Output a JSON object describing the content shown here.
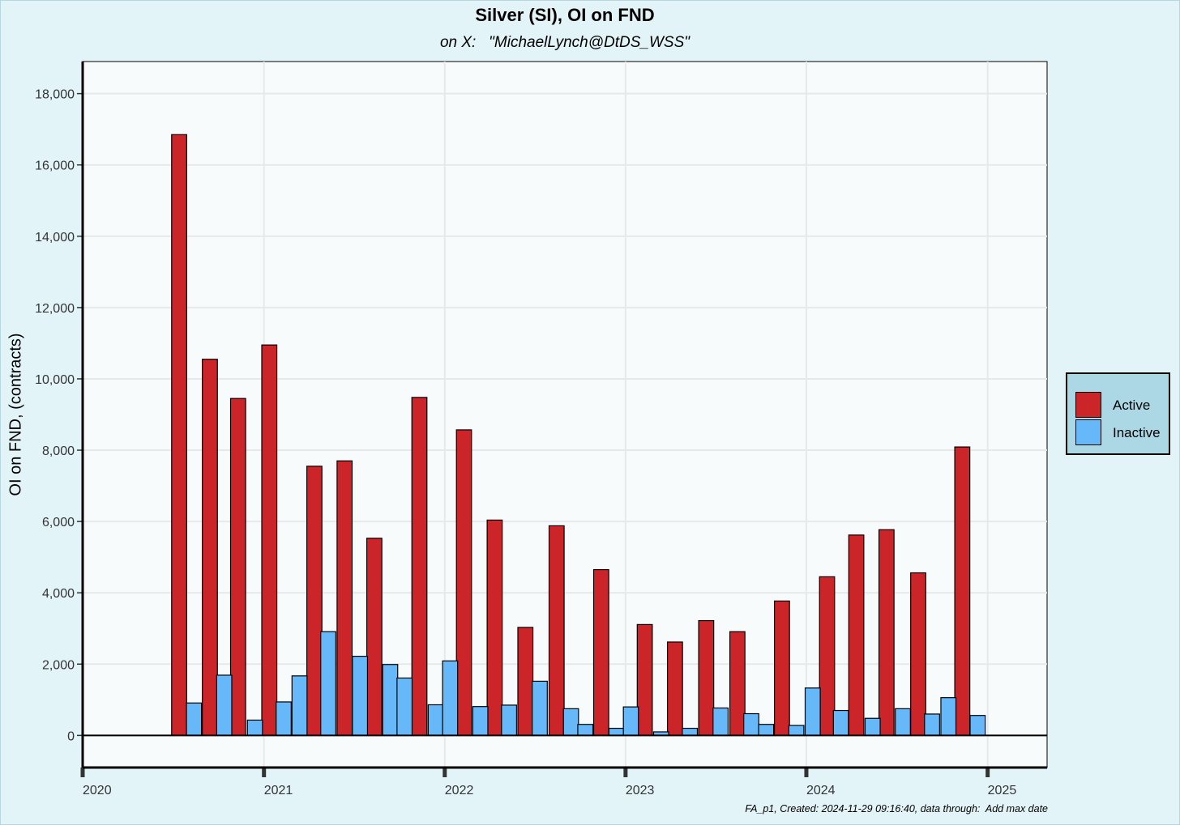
{
  "chart_data": {
    "type": "bar",
    "title": "Silver (SI), OI on FND",
    "subtitle": "on X:   \"MichaelLynch@DtDS_WSS\"",
    "ylabel": "OI on FND, (contracts)",
    "xlabel": "",
    "x_ticks": [
      "2020",
      "2021",
      "2022",
      "2023",
      "2024",
      "2025"
    ],
    "y_ticks": [
      "0",
      "2,000",
      "4,000",
      "6,000",
      "8,000",
      "10,000",
      "12,000",
      "14,000",
      "16,000",
      "18,000"
    ],
    "ylim": [
      -900,
      18900
    ],
    "xlim": [
      "2020-01-01",
      "2025-05-01"
    ],
    "grid": true,
    "legend_position": "right",
    "caption": "FA_p1, Created: 2024-11-29 09:16:40, data through:  Add max date",
    "series": [
      {
        "name": "Active",
        "color": "#cc2529",
        "points": [
          {
            "date": "2020-07-29",
            "value": 16850
          },
          {
            "date": "2020-09-29",
            "value": 10550
          },
          {
            "date": "2020-11-25",
            "value": 9450
          },
          {
            "date": "2021-01-27",
            "value": 10950
          },
          {
            "date": "2021-04-28",
            "value": 7550
          },
          {
            "date": "2021-06-28",
            "value": 7700
          },
          {
            "date": "2021-08-27",
            "value": 5530
          },
          {
            "date": "2021-11-26",
            "value": 9480
          },
          {
            "date": "2022-02-24",
            "value": 8570
          },
          {
            "date": "2022-04-27",
            "value": 6040
          },
          {
            "date": "2022-06-28",
            "value": 3030
          },
          {
            "date": "2022-08-30",
            "value": 5880
          },
          {
            "date": "2022-11-28",
            "value": 4650
          },
          {
            "date": "2023-02-24",
            "value": 3110
          },
          {
            "date": "2023-04-26",
            "value": 2620
          },
          {
            "date": "2023-06-28",
            "value": 3220
          },
          {
            "date": "2023-08-30",
            "value": 2910
          },
          {
            "date": "2023-11-28",
            "value": 3770
          },
          {
            "date": "2024-02-27",
            "value": 4450
          },
          {
            "date": "2024-04-26",
            "value": 5620
          },
          {
            "date": "2024-06-26",
            "value": 5770
          },
          {
            "date": "2024-08-29",
            "value": 4560
          },
          {
            "date": "2024-11-26",
            "value": 8090
          }
        ]
      },
      {
        "name": "Inactive",
        "color": "#67b8f9",
        "points": [
          {
            "date": "2020-08-28",
            "value": 910
          },
          {
            "date": "2020-10-28",
            "value": 1690
          },
          {
            "date": "2020-12-29",
            "value": 430
          },
          {
            "date": "2021-02-25",
            "value": 940
          },
          {
            "date": "2021-03-29",
            "value": 1670
          },
          {
            "date": "2021-05-26",
            "value": 2910
          },
          {
            "date": "2021-07-29",
            "value": 2220
          },
          {
            "date": "2021-09-28",
            "value": 1990
          },
          {
            "date": "2021-10-27",
            "value": 1610
          },
          {
            "date": "2021-12-29",
            "value": 860
          },
          {
            "date": "2022-01-27",
            "value": 2090
          },
          {
            "date": "2022-03-29",
            "value": 810
          },
          {
            "date": "2022-05-26",
            "value": 850
          },
          {
            "date": "2022-07-27",
            "value": 1520
          },
          {
            "date": "2022-09-28",
            "value": 750
          },
          {
            "date": "2022-10-27",
            "value": 310
          },
          {
            "date": "2022-12-29",
            "value": 200
          },
          {
            "date": "2023-01-27",
            "value": 800
          },
          {
            "date": "2023-03-29",
            "value": 100
          },
          {
            "date": "2023-05-26",
            "value": 200
          },
          {
            "date": "2023-07-27",
            "value": 770
          },
          {
            "date": "2023-09-27",
            "value": 610
          },
          {
            "date": "2023-10-27",
            "value": 310
          },
          {
            "date": "2023-12-27",
            "value": 280
          },
          {
            "date": "2024-01-29",
            "value": 1330
          },
          {
            "date": "2024-03-26",
            "value": 700
          },
          {
            "date": "2024-05-29",
            "value": 480
          },
          {
            "date": "2024-07-29",
            "value": 750
          },
          {
            "date": "2024-09-26",
            "value": 600
          },
          {
            "date": "2024-10-29",
            "value": 1060
          },
          {
            "date": "2024-12-27",
            "value": 560
          }
        ]
      }
    ]
  }
}
